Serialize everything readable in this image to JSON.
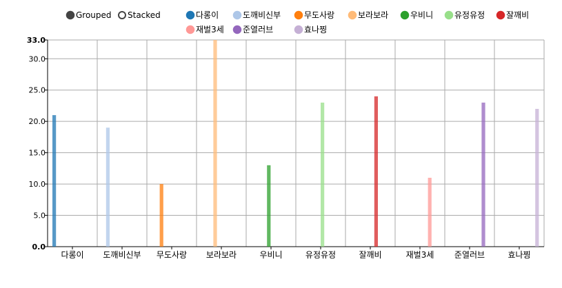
{
  "controls": {
    "grouped_label": "Grouped",
    "stacked_label": "Stacked",
    "selected": "grouped"
  },
  "chart_data": {
    "type": "bar",
    "mode": "grouped",
    "categories": [
      "다롱이",
      "도깨비신부",
      "무도사랑",
      "보라보라",
      "우비니",
      "유정유정",
      "잘깨비",
      "재벌3세",
      "준열러브",
      "효나찡"
    ],
    "series": [
      {
        "name": "다롱이",
        "color": "#1f77b4",
        "values": [
          21,
          null,
          null,
          null,
          null,
          null,
          null,
          null,
          null,
          null
        ]
      },
      {
        "name": "도깨비신부",
        "color": "#aec7e8",
        "values": [
          null,
          19,
          null,
          null,
          null,
          null,
          null,
          null,
          null,
          null
        ]
      },
      {
        "name": "무도사랑",
        "color": "#ff7f0e",
        "values": [
          null,
          null,
          10,
          null,
          null,
          null,
          null,
          null,
          null,
          null
        ]
      },
      {
        "name": "보라보라",
        "color": "#ffbb78",
        "values": [
          null,
          null,
          null,
          33,
          null,
          null,
          null,
          null,
          null,
          null
        ]
      },
      {
        "name": "우비니",
        "color": "#2ca02c",
        "values": [
          null,
          null,
          null,
          null,
          13,
          null,
          null,
          null,
          null,
          null
        ]
      },
      {
        "name": "유정유정",
        "color": "#98df8a",
        "values": [
          null,
          null,
          null,
          null,
          null,
          23,
          null,
          null,
          null,
          null
        ]
      },
      {
        "name": "잘깨비",
        "color": "#d62728",
        "values": [
          null,
          null,
          null,
          null,
          null,
          null,
          24,
          null,
          null,
          null
        ]
      },
      {
        "name": "재벌3세",
        "color": "#ff9896",
        "values": [
          null,
          null,
          null,
          null,
          null,
          null,
          null,
          11,
          null,
          null
        ]
      },
      {
        "name": "준열러브",
        "color": "#9467bd",
        "values": [
          null,
          null,
          null,
          null,
          null,
          null,
          null,
          null,
          23,
          null
        ]
      },
      {
        "name": "효나찡",
        "color": "#c5b0d5",
        "values": [
          null,
          null,
          null,
          null,
          null,
          null,
          null,
          null,
          null,
          22
        ]
      }
    ],
    "y_ticks": [
      "0.0",
      "5.0",
      "10.0",
      "15.0",
      "20.0",
      "25.0",
      "30.0",
      "33.0"
    ],
    "ylim": [
      0,
      33
    ],
    "grid": true,
    "legend_position": "top"
  }
}
